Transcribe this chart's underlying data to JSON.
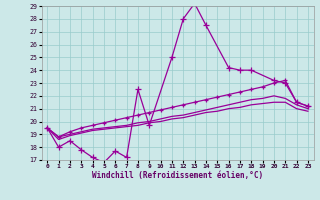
{
  "xlabel": "Windchill (Refroidissement éolien,°C)",
  "bg_color": "#cce8e8",
  "grid_color": "#99cccc",
  "line_color": "#990099",
  "xlim": [
    -0.5,
    23.5
  ],
  "ylim": [
    17,
    29
  ],
  "yticks": [
    17,
    18,
    19,
    20,
    21,
    22,
    23,
    24,
    25,
    26,
    27,
    28,
    29
  ],
  "xticks": [
    0,
    1,
    2,
    3,
    4,
    5,
    6,
    7,
    8,
    9,
    10,
    11,
    12,
    13,
    14,
    15,
    16,
    17,
    18,
    19,
    20,
    21,
    22,
    23
  ],
  "series1_x": [
    0,
    1,
    2,
    3,
    4,
    5,
    6,
    7,
    8,
    9,
    11,
    12,
    13,
    14,
    16,
    17,
    18,
    20,
    21,
    22,
    23
  ],
  "series1_y": [
    19.5,
    18.0,
    18.5,
    17.8,
    17.2,
    16.8,
    17.7,
    17.2,
    22.5,
    19.7,
    25.0,
    28.0,
    29.2,
    27.5,
    24.2,
    24.0,
    24.0,
    23.2,
    23.0,
    21.5,
    21.2
  ],
  "series2_x": [
    0,
    1,
    2,
    3,
    4,
    5,
    6,
    7,
    8,
    9,
    10,
    11,
    12,
    13,
    14,
    15,
    16,
    17,
    18,
    19,
    20,
    21,
    22,
    23
  ],
  "series2_y": [
    19.5,
    18.8,
    19.2,
    19.5,
    19.7,
    19.9,
    20.1,
    20.3,
    20.5,
    20.7,
    20.9,
    21.1,
    21.3,
    21.5,
    21.7,
    21.9,
    22.1,
    22.3,
    22.5,
    22.7,
    23.0,
    23.2,
    21.5,
    21.2
  ],
  "series3_x": [
    0,
    1,
    2,
    3,
    4,
    5,
    6,
    7,
    8,
    9,
    10,
    11,
    12,
    13,
    14,
    15,
    16,
    17,
    18,
    19,
    20,
    21,
    22,
    23
  ],
  "series3_y": [
    19.5,
    18.8,
    19.0,
    19.2,
    19.4,
    19.5,
    19.6,
    19.7,
    19.9,
    20.0,
    20.2,
    20.4,
    20.5,
    20.7,
    20.9,
    21.1,
    21.3,
    21.5,
    21.7,
    21.8,
    22.0,
    21.8,
    21.3,
    21.0
  ],
  "series4_x": [
    0,
    1,
    2,
    3,
    4,
    5,
    6,
    7,
    8,
    9,
    10,
    11,
    12,
    13,
    14,
    15,
    16,
    17,
    18,
    19,
    20,
    21,
    22,
    23
  ],
  "series4_y": [
    19.5,
    18.6,
    18.9,
    19.1,
    19.3,
    19.4,
    19.5,
    19.6,
    19.7,
    19.9,
    20.0,
    20.2,
    20.3,
    20.5,
    20.7,
    20.8,
    21.0,
    21.1,
    21.3,
    21.4,
    21.5,
    21.5,
    21.0,
    20.8
  ]
}
